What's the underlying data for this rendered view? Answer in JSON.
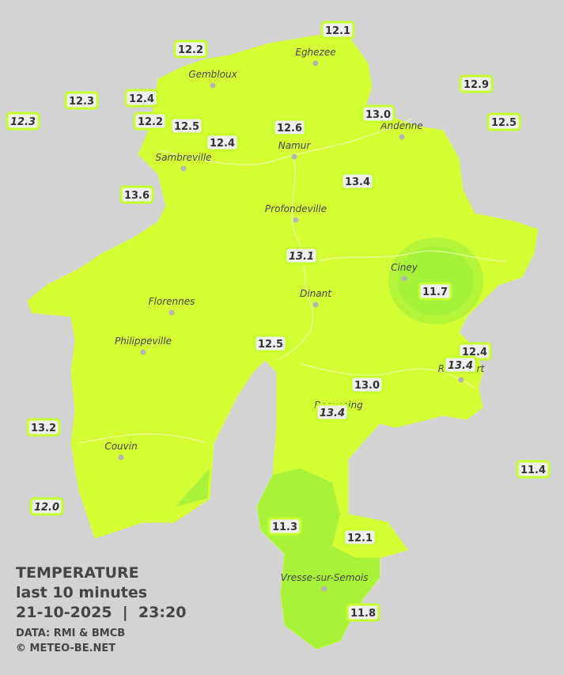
{
  "cities": [
    {
      "name": "Eghezee"
    },
    {
      "name": "Gembloux"
    },
    {
      "name": "Andenne"
    },
    {
      "name": "Sambreville"
    },
    {
      "name": "Namur"
    },
    {
      "name": "Profondeville"
    },
    {
      "name": "Ciney"
    },
    {
      "name": "Dinant"
    },
    {
      "name": "Florennes"
    },
    {
      "name": "Philippeville"
    },
    {
      "name": "Rochefort"
    },
    {
      "name": "Beauraing"
    },
    {
      "name": "Couvin"
    },
    {
      "name": "Vresse-sur-Semois"
    }
  ],
  "stations": [
    {
      "temp": "12.1"
    },
    {
      "temp": "12.2"
    },
    {
      "temp": "12.9"
    },
    {
      "temp": "12.3"
    },
    {
      "temp": "12.4"
    },
    {
      "temp": "13.0"
    },
    {
      "temp": "12.3",
      "italic": true
    },
    {
      "temp": "12.2"
    },
    {
      "temp": "12.5"
    },
    {
      "temp": "12.6"
    },
    {
      "temp": "12.5"
    },
    {
      "temp": "12.4"
    },
    {
      "temp": "13.4"
    },
    {
      "temp": "13.6"
    },
    {
      "temp": "13.1",
      "italic": true
    },
    {
      "temp": "11.7"
    },
    {
      "temp": "12.5"
    },
    {
      "temp": "12.4"
    },
    {
      "temp": "13.4",
      "italic": true
    },
    {
      "temp": "13.0"
    },
    {
      "temp": "13.4",
      "italic": true
    },
    {
      "temp": "13.2"
    },
    {
      "temp": "11.4"
    },
    {
      "temp": "12.0",
      "italic": true
    },
    {
      "temp": "11.3"
    },
    {
      "temp": "12.1"
    },
    {
      "temp": "11.8"
    }
  ],
  "info": {
    "title": "TEMPERATURE",
    "period": "last 10 minutes",
    "datetime": "21-10-2025  |  23:20",
    "source": "DATA: RMI & BMCB",
    "copyright": "© METEO-BE.NET"
  }
}
